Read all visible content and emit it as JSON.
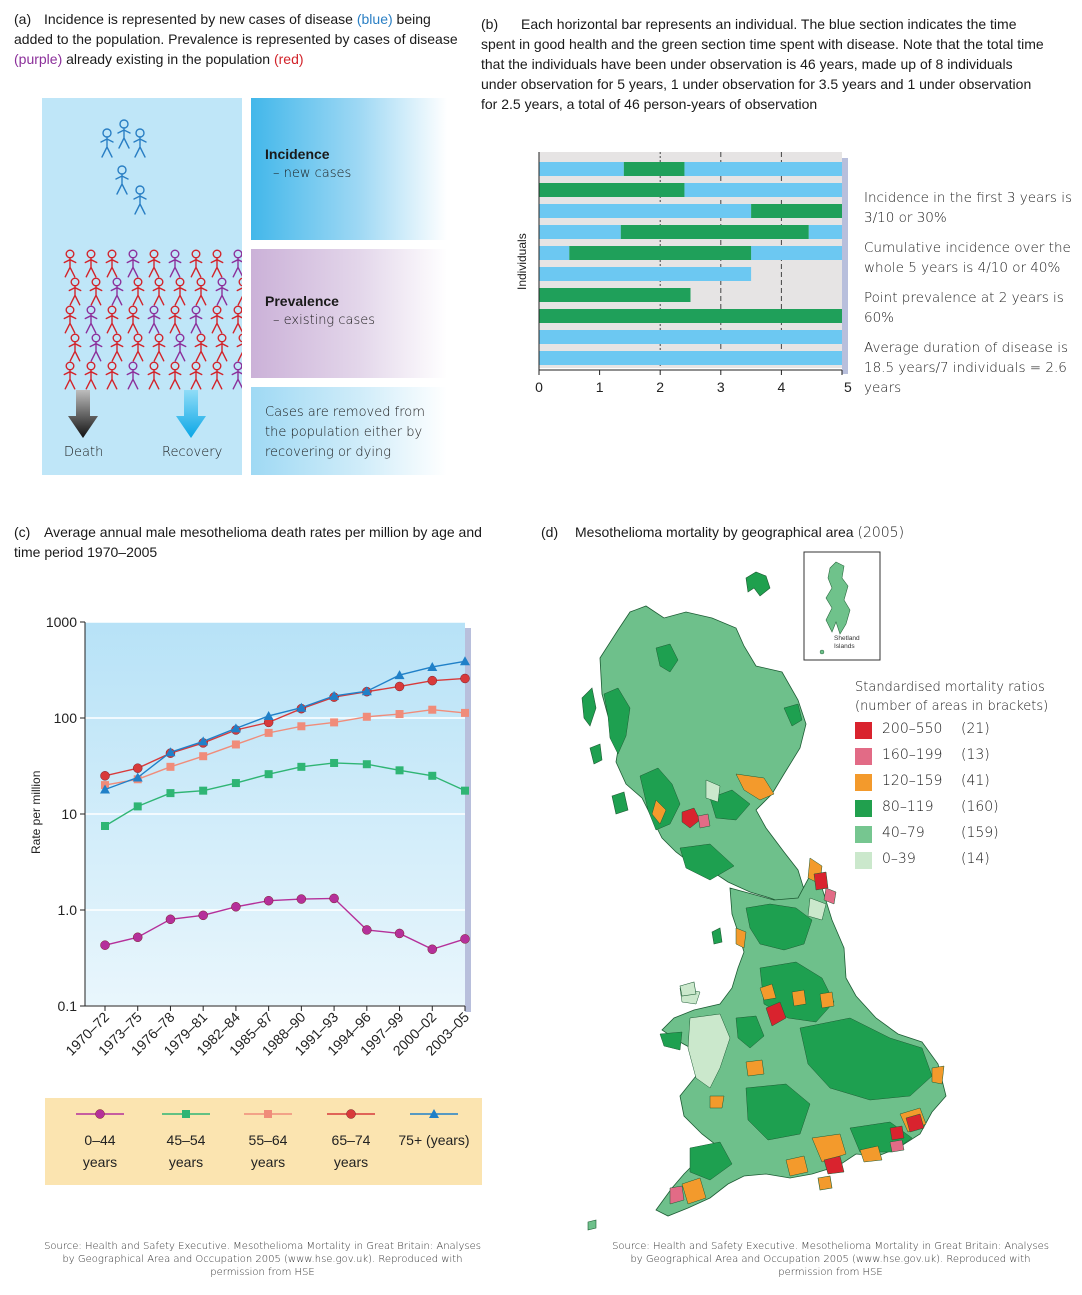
{
  "panel_a": {
    "label": "(a)",
    "caption_1": "Incidence is represented by new cases of disease ",
    "caption_blue": "(blue)",
    "caption_2": " being added to the population.  Prevalence is represented by cases of disease ",
    "caption_purple": "(purple)",
    "caption_3": " already existing in the population ",
    "caption_red": "(red)",
    "incidence_title": "Incidence",
    "incidence_sub": "– new cases",
    "prevalence_title": "Prevalence",
    "prevalence_sub": "– existing cases",
    "removal_text": "Cases are removed from the population either by recovering or dying",
    "death_label": "Death",
    "recovery_label": "Recovery",
    "colors": {
      "blue": "#2a7fc4",
      "purple": "#8b2f9a",
      "red": "#d2232a"
    }
  },
  "panel_b": {
    "label": "(b)",
    "caption": "Each horizontal bar represents an individual. The blue section indicates the time spent in good health and the green section time spent with disease. Note that the total time that the individuals have been under observation is 46 years, made up of 8 individuals under observation for 5 years, 1 under observation for 3.5 years and 1 under observation for 2.5 years, a total of 46 person-years of observation",
    "y_axis_label": "Individuals",
    "x_ticks": [
      "0",
      "1",
      "2",
      "3",
      "4",
      "5 years"
    ],
    "notes": [
      "Incidence in the first 3 years is 3/10 or 30%",
      "Cumulative incidence over the whole 5 years is 4/10 or 40%",
      "Point prevalence at 2 years is 60%",
      "Average duration of disease is 18.5 years/7 individuals = 2.6 years"
    ],
    "colors": {
      "healthy": "#6cc8f2",
      "disease": "#1fa05a",
      "background": "#e6e4e4"
    }
  },
  "panel_c": {
    "label": "(c)",
    "caption": "Average annual male mesothelioma death rates per million by age and time period 1970–2005",
    "source": "Source: Health and Safety Executive. Mesothelioma Mortality in Great Britain: Analyses by Geographical Area and Occupation 2005 (www.hse.gov.uk). Reproduced with permission from HSE"
  },
  "panel_d": {
    "label": "(d)",
    "caption": "Mesothelioma mortality by geographical area",
    "caption_year": "(2005)",
    "inset_label": "Shetland Islands",
    "legend_title": "Standardised mortality ratios (number of areas in brackets)",
    "legend": [
      {
        "range": "200–550",
        "count": "(21)",
        "color": "#d9232e"
      },
      {
        "range": "160–199",
        "count": "(13)",
        "color": "#e26b86"
      },
      {
        "range": "120–159",
        "count": "(41)",
        "color": "#f39a2c"
      },
      {
        "range": "80–119",
        "count": "(160)",
        "color": "#21a04e"
      },
      {
        "range": "40–79",
        "count": "(159)",
        "color": "#76c690"
      },
      {
        "range": "0–39",
        "count": "(14)",
        "color": "#cbe8cc"
      }
    ],
    "source": "Source: Health and Safety Executive. Mesothelioma Mortality in Great Britain: Analyses by Geographical Area and Occupation 2005 (www.hse.gov.uk). Reproduced with permission from HSE"
  },
  "chart_data": [
    {
      "type": "bar",
      "title": "Each horizontal bar represents an individual",
      "orientation": "horizontal",
      "xlabel": "years",
      "ylabel": "Individuals",
      "xlim": [
        0,
        5
      ],
      "reference_lines": [
        2,
        3,
        4
      ],
      "individuals": [
        {
          "healthy": [
            [
              0,
              1.4
            ],
            [
              2.4,
              5
            ]
          ],
          "disease": [
            [
              1.4,
              2.4
            ]
          ]
        },
        {
          "healthy": [
            [
              2.4,
              5
            ]
          ],
          "disease": [
            [
              0,
              2.4
            ]
          ]
        },
        {
          "healthy": [
            [
              0,
              3.5
            ]
          ],
          "disease": [
            [
              3.5,
              5
            ]
          ]
        },
        {
          "healthy": [
            [
              0,
              1.35
            ],
            [
              4.45,
              5
            ]
          ],
          "disease": [
            [
              1.35,
              4.45
            ]
          ]
        },
        {
          "healthy": [
            [
              0,
              0.5
            ],
            [
              3.5,
              5
            ]
          ],
          "disease": [
            [
              0.5,
              3.5
            ]
          ]
        },
        {
          "healthy": [
            [
              0,
              3.5
            ]
          ],
          "disease": []
        },
        {
          "healthy": [],
          "disease": [
            [
              0,
              2.5
            ]
          ]
        },
        {
          "healthy": [],
          "disease": [
            [
              0,
              5
            ]
          ]
        },
        {
          "healthy": [
            [
              0,
              5
            ]
          ],
          "disease": []
        },
        {
          "healthy": [
            [
              0,
              5
            ]
          ],
          "disease": []
        }
      ]
    },
    {
      "type": "line",
      "title": "Average annual male mesothelioma death rates per million by age and time period 1970–2005",
      "ylabel": "Rate per million",
      "yscale": "log",
      "ylim": [
        0.1,
        1000
      ],
      "y_ticks": [
        "0.1",
        "1.0",
        "10",
        "100",
        "1000"
      ],
      "categories": [
        "1970–72",
        "1973–75",
        "1976–78",
        "1979–81",
        "1982–84",
        "1985–87",
        "1988–90",
        "1991–93",
        "1994–96",
        "1997–99",
        "2000–02",
        "2003–05"
      ],
      "series": [
        {
          "name": "0–44 years",
          "marker": "circle",
          "color": "#b5309a",
          "values": [
            0.43,
            0.52,
            0.8,
            0.88,
            1.08,
            1.25,
            1.3,
            1.32,
            0.62,
            0.57,
            0.39,
            0.5
          ]
        },
        {
          "name": "45–54 years",
          "marker": "square",
          "color": "#2fb574",
          "values": [
            7.5,
            12,
            16.5,
            17.5,
            21,
            26,
            31,
            34,
            33,
            28.5,
            25,
            17.5
          ]
        },
        {
          "name": "55–64 years",
          "marker": "square",
          "color": "#f08c7a",
          "values": [
            20,
            23,
            31,
            40,
            53,
            70,
            82,
            90,
            103,
            110,
            122,
            113
          ]
        },
        {
          "name": "65–74 years",
          "marker": "circle",
          "color": "#d83a3a",
          "values": [
            25,
            30,
            43,
            55,
            75,
            90,
            125,
            165,
            188,
            213,
            245,
            258
          ]
        },
        {
          "name": "75+ (years)",
          "marker": "triangle",
          "color": "#2080c8",
          "values": [
            18,
            24,
            44,
            57,
            78,
            105,
            128,
            170,
            190,
            280,
            340,
            390
          ]
        }
      ]
    }
  ]
}
